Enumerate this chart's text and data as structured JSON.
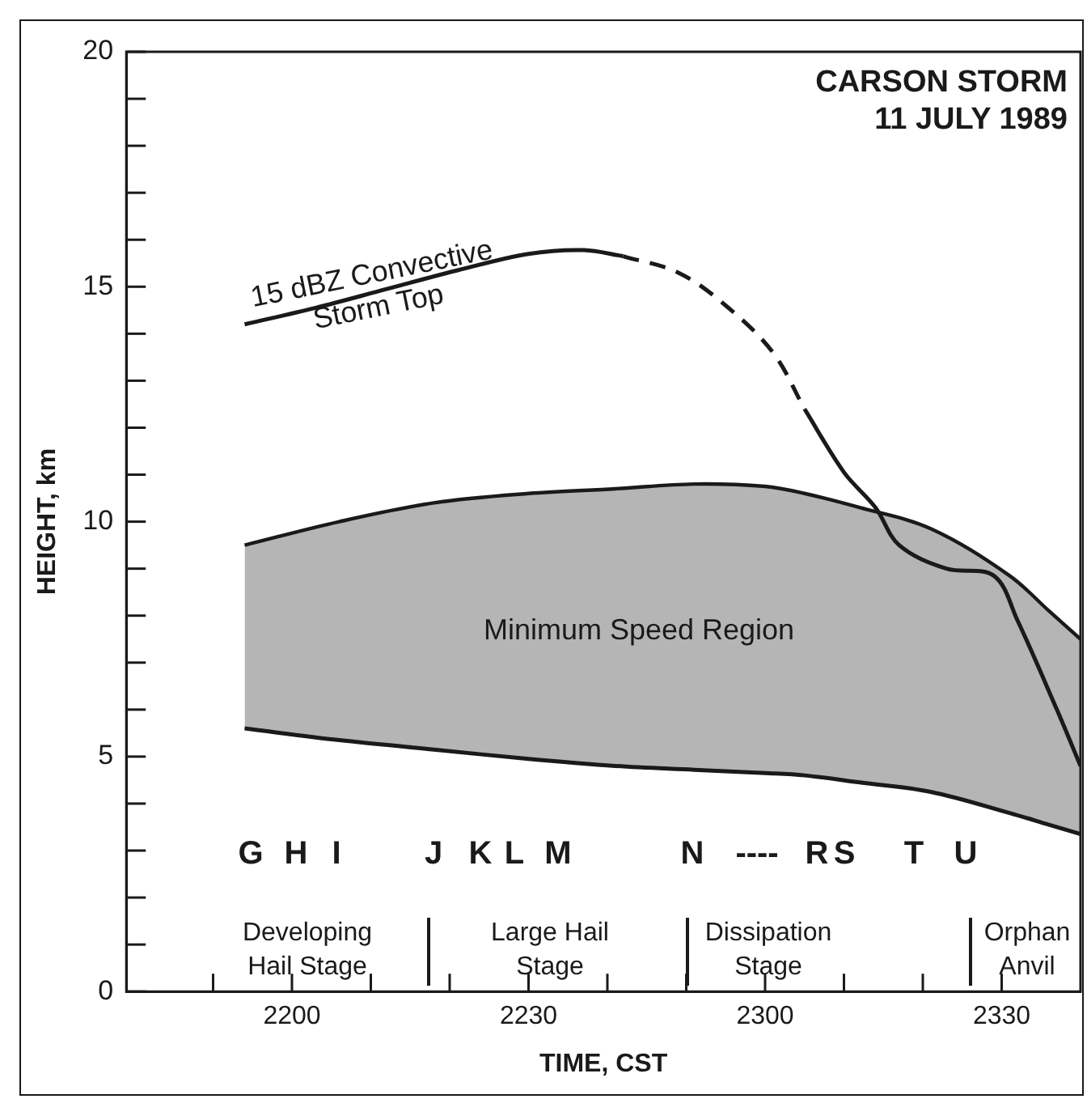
{
  "chart_data": {
    "type": "line",
    "title": "CARSON STORM",
    "subtitle": "11 JULY 1989",
    "xlabel": "TIME, CST",
    "ylabel": "HEIGHT, km",
    "xlim": [
      "1989-07-11T21:39",
      "1989-07-11T23:40"
    ],
    "xticks": [
      {
        "value": "1989-07-11T21:50",
        "label": null
      },
      {
        "value": "1989-07-11T22:00",
        "label": "2200"
      },
      {
        "value": "1989-07-11T22:10",
        "label": null
      },
      {
        "value": "1989-07-11T22:20",
        "label": null
      },
      {
        "value": "1989-07-11T22:30",
        "label": "2230"
      },
      {
        "value": "1989-07-11T22:40",
        "label": null
      },
      {
        "value": "1989-07-11T22:50",
        "label": null
      },
      {
        "value": "1989-07-11T23:00",
        "label": "2300"
      },
      {
        "value": "1989-07-11T23:10",
        "label": null
      },
      {
        "value": "1989-07-11T23:20",
        "label": null
      },
      {
        "value": "1989-07-11T23:30",
        "label": "2330"
      }
    ],
    "ylim": [
      0,
      20
    ],
    "yticks": [
      0,
      {
        "value": 1,
        "label": null
      },
      {
        "value": 2,
        "label": null
      },
      {
        "value": 3,
        "label": null
      },
      {
        "value": 4,
        "label": null
      },
      5,
      {
        "value": 6,
        "label": null
      },
      {
        "value": 7,
        "label": null
      },
      {
        "value": 8,
        "label": null
      },
      {
        "value": 9,
        "label": null
      },
      10,
      {
        "value": 11,
        "label": null
      },
      {
        "value": 12,
        "label": null
      },
      {
        "value": 13,
        "label": null
      },
      {
        "value": 14,
        "label": null
      },
      15,
      {
        "value": 16,
        "label": null
      },
      {
        "value": 17,
        "label": null
      },
      {
        "value": 18,
        "label": null
      },
      {
        "value": 19,
        "label": null
      },
      20
    ],
    "grid": false,
    "legend": false,
    "marker": "none",
    "series": [
      {
        "color": "#1a1a1a",
        "line_style": "solid",
        "x": [
          "1989-07-11T21:54",
          "1989-07-11T22:06",
          "1989-07-11T22:18",
          "1989-07-11T22:30",
          "1989-07-11T22:41",
          "1989-07-11T22:51",
          "1989-07-11T23:00",
          "1989-07-11T23:05",
          "1989-07-11T23:12",
          "1989-07-11T23:21",
          "1989-07-11T23:31",
          "1989-07-11T23:36",
          "1989-07-11T23:40"
        ],
        "values": [
          5.6,
          5.35,
          5.15,
          4.95,
          4.8,
          4.72,
          4.65,
          4.6,
          4.45,
          4.25,
          3.8,
          3.55,
          3.35
        ]
      },
      {
        "type": "area",
        "color": "#b5b5b5",
        "x": [
          "1989-07-11T21:54",
          "1989-07-11T22:06",
          "1989-07-11T22:18",
          "1989-07-11T22:30",
          "1989-07-11T22:41",
          "1989-07-11T22:51",
          "1989-07-11T23:00",
          "1989-07-11T23:05",
          "1989-07-11T23:12",
          "1989-07-11T23:21",
          "1989-07-11T23:31",
          "1989-07-11T23:36",
          "1989-07-11T23:40"
        ],
        "values": [
          9.5,
          10.0,
          10.4,
          10.6,
          10.7,
          10.8,
          10.75,
          10.6,
          10.3,
          9.85,
          8.85,
          8.1,
          7.5
        ]
      },
      {
        "color": "#1a1a1a",
        "line_style": "solid",
        "x": [
          "1989-07-11T21:54",
          "1989-07-11T22:03",
          "1989-07-11T22:12",
          "1989-07-11T22:21",
          "1989-07-11T22:30",
          "1989-07-11T22:37",
          "1989-07-11T22:42"
        ],
        "values": [
          14.2,
          14.55,
          14.95,
          15.35,
          15.7,
          15.78,
          15.65
        ]
      },
      {
        "color": "#1a1a1a",
        "line_style": "dashed",
        "x": [
          "1989-07-11T22:42",
          "1989-07-11T22:49",
          "1989-07-11T22:55",
          "1989-07-11T23:01",
          "1989-07-11T23:05"
        ],
        "values": [
          15.65,
          15.3,
          14.6,
          13.6,
          12.4
        ]
      },
      {
        "color": "#1a1a1a",
        "line_style": "solid",
        "x": [
          "1989-07-11T23:05",
          "1989-07-11T23:10",
          "1989-07-11T23:14",
          "1989-07-11T23:17",
          "1989-07-11T23:23",
          "1989-07-11T23:29",
          "1989-07-11T23:32",
          "1989-07-11T23:37",
          "1989-07-11T23:40"
        ],
        "values": [
          12.4,
          11.05,
          10.3,
          9.5,
          9.0,
          8.85,
          7.9,
          6.0,
          4.8
        ]
      }
    ],
    "annotations": [
      "15 dBZ Convective Storm Top",
      "Minimum Speed Region",
      "G",
      "H",
      "I",
      "J",
      "K",
      "L",
      "M",
      "N",
      "----",
      "R",
      "S",
      "T",
      "U",
      "Developing Hail Stage",
      "Large Hail Stage",
      "Dissipation Stage",
      "Orphan Anvil"
    ]
  }
}
